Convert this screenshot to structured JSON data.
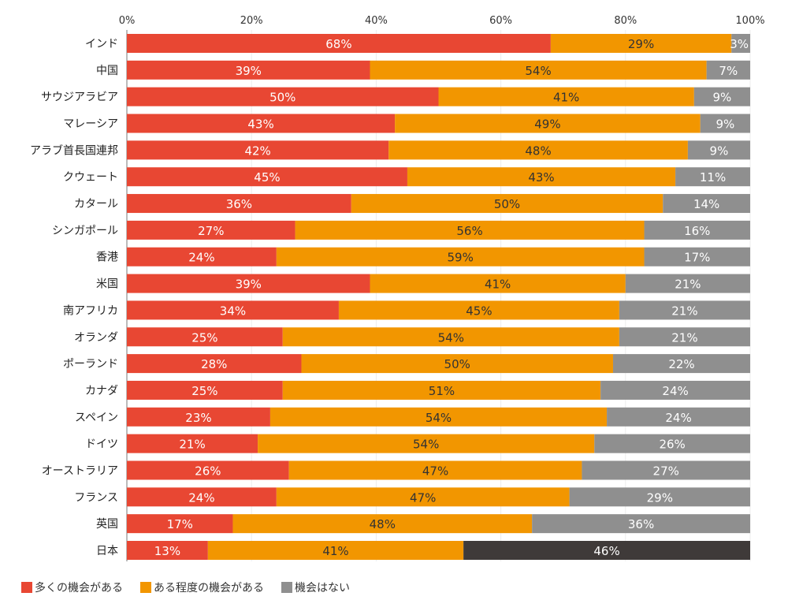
{
  "chart_data": {
    "type": "bar",
    "orientation": "horizontal",
    "stacked": true,
    "xlim": [
      0,
      100
    ],
    "xticks": [
      "0%",
      "20%",
      "40%",
      "60%",
      "80%",
      "100%"
    ],
    "grid": true,
    "legend_position": "bottom-left",
    "categories": [
      "インド",
      "中国",
      "サウジアラビア",
      "マレーシア",
      "アラブ首長国連邦",
      "クウェート",
      "カタール",
      "シンガポール",
      "香港",
      "米国",
      "南アフリカ",
      "オランダ",
      "ポーランド",
      "カナダ",
      "スペイン",
      "ドイツ",
      "オーストラリア",
      "フランス",
      "英国",
      "日本"
    ],
    "series": [
      {
        "name": "多くの機会がある",
        "color": "#e84733",
        "label_color": "#ffffff",
        "values": [
          68,
          39,
          50,
          43,
          42,
          45,
          36,
          27,
          24,
          39,
          34,
          25,
          28,
          25,
          23,
          21,
          26,
          24,
          17,
          13
        ]
      },
      {
        "name": "ある程度の機会がある",
        "color": "#f29600",
        "label_color": "#333333",
        "values": [
          29,
          54,
          41,
          49,
          48,
          43,
          50,
          56,
          59,
          41,
          45,
          54,
          50,
          51,
          54,
          54,
          47,
          47,
          48,
          41
        ]
      },
      {
        "name": "機会はない",
        "color": "#8f8f8f",
        "label_color": "#ffffff",
        "values": [
          3,
          7,
          9,
          9,
          9,
          11,
          14,
          16,
          17,
          21,
          21,
          21,
          22,
          24,
          24,
          26,
          27,
          29,
          36,
          46
        ]
      }
    ],
    "highlight": {
      "category": "日本",
      "series": "機会はない",
      "color": "#3f3a39"
    }
  }
}
